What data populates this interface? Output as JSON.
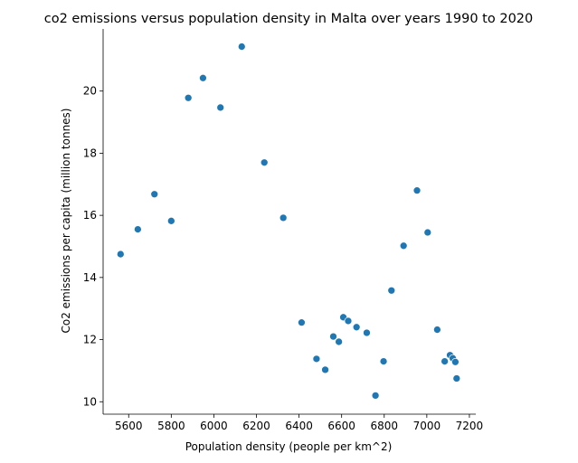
{
  "chart_data": {
    "type": "scatter",
    "title": "co2 emissions versus population density in Malta over years 1990 to 2020",
    "xlabel": "Population density (people per km^2)",
    "ylabel": "Co2 emissions per capita (million tonnes)",
    "xlim": [
      5480,
      7230
    ],
    "ylim": [
      9.6,
      22.0
    ],
    "xticks": [
      5600,
      5800,
      6000,
      6200,
      6400,
      6600,
      6800,
      7000,
      7200
    ],
    "yticks": [
      10,
      12,
      14,
      16,
      18,
      20
    ],
    "grid": false,
    "marker_color": "#1f77b4",
    "points": [
      {
        "x": 5562,
        "y": 14.75
      },
      {
        "x": 5643,
        "y": 15.55
      },
      {
        "x": 5721,
        "y": 16.68
      },
      {
        "x": 5800,
        "y": 15.82
      },
      {
        "x": 5880,
        "y": 19.78
      },
      {
        "x": 5949,
        "y": 20.42
      },
      {
        "x": 6031,
        "y": 19.47
      },
      {
        "x": 6131,
        "y": 21.43
      },
      {
        "x": 6237,
        "y": 17.7
      },
      {
        "x": 6326,
        "y": 15.92
      },
      {
        "x": 6412,
        "y": 12.55
      },
      {
        "x": 6482,
        "y": 11.38
      },
      {
        "x": 6523,
        "y": 11.03
      },
      {
        "x": 6561,
        "y": 12.1
      },
      {
        "x": 6587,
        "y": 11.93
      },
      {
        "x": 6608,
        "y": 12.72
      },
      {
        "x": 6631,
        "y": 12.6
      },
      {
        "x": 6670,
        "y": 12.4
      },
      {
        "x": 6718,
        "y": 12.22
      },
      {
        "x": 6759,
        "y": 10.2
      },
      {
        "x": 6797,
        "y": 11.3
      },
      {
        "x": 6834,
        "y": 13.58
      },
      {
        "x": 6891,
        "y": 15.02
      },
      {
        "x": 6954,
        "y": 16.8
      },
      {
        "x": 7004,
        "y": 15.45
      },
      {
        "x": 7049,
        "y": 12.32
      },
      {
        "x": 7084,
        "y": 11.3
      },
      {
        "x": 7109,
        "y": 11.5
      },
      {
        "x": 7122,
        "y": 11.4
      },
      {
        "x": 7134,
        "y": 11.28
      },
      {
        "x": 7140,
        "y": 10.75
      }
    ]
  }
}
